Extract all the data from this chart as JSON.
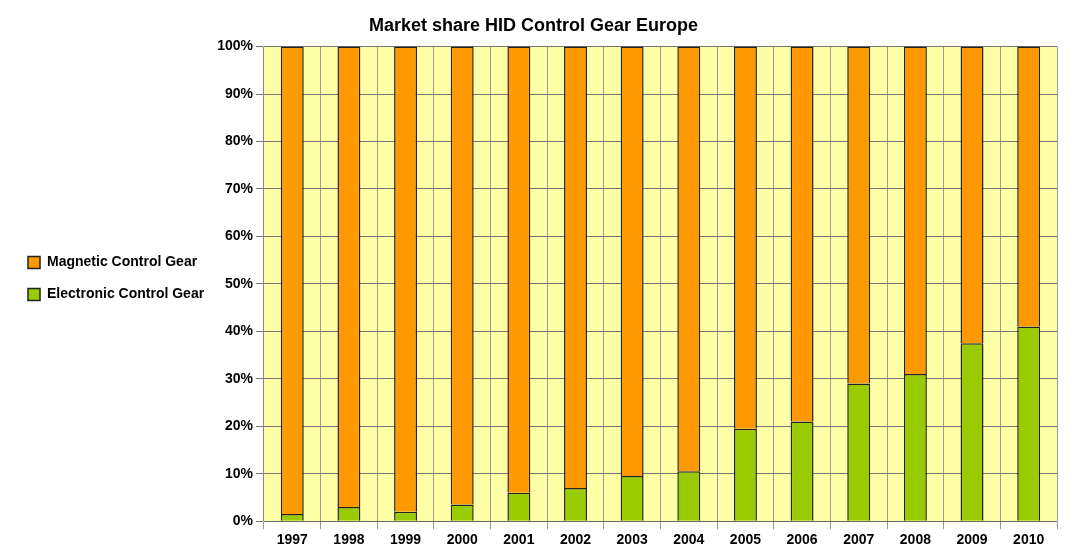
{
  "chart_data": {
    "type": "bar",
    "title": "Market share HID Control Gear Europe",
    "stacked": true,
    "categories": [
      "1997",
      "1998",
      "1999",
      "2000",
      "2001",
      "2002",
      "2003",
      "2004",
      "2005",
      "2006",
      "2007",
      "2008",
      "2009",
      "2010"
    ],
    "series": [
      {
        "name": "Electronic Control Gear",
        "color": "#99cc00",
        "values": [
          1.5,
          3,
          2,
          3.5,
          6,
          7,
          9.5,
          10.5,
          19.5,
          21,
          29,
          31,
          37.5,
          41
        ]
      },
      {
        "name": "Magnetic Control Gear",
        "color": "#ff9900",
        "values": [
          98.5,
          97,
          98,
          96.5,
          94,
          93,
          90.5,
          89.5,
          80.5,
          79,
          71,
          69,
          62.5,
          59
        ]
      }
    ],
    "ylim": [
      0,
      100
    ],
    "yticks": [
      {
        "value": 0,
        "label": "0%"
      },
      {
        "value": 10,
        "label": "10%"
      },
      {
        "value": 20,
        "label": "20%"
      },
      {
        "value": 30,
        "label": "30%"
      },
      {
        "value": 40,
        "label": "40%"
      },
      {
        "value": 50,
        "label": "50%"
      },
      {
        "value": 60,
        "label": "60%"
      },
      {
        "value": 70,
        "label": "70%"
      },
      {
        "value": 80,
        "label": "80%"
      },
      {
        "value": 90,
        "label": "90%"
      },
      {
        "value": 100,
        "label": "100%"
      }
    ],
    "grid": true,
    "legend": "left"
  }
}
